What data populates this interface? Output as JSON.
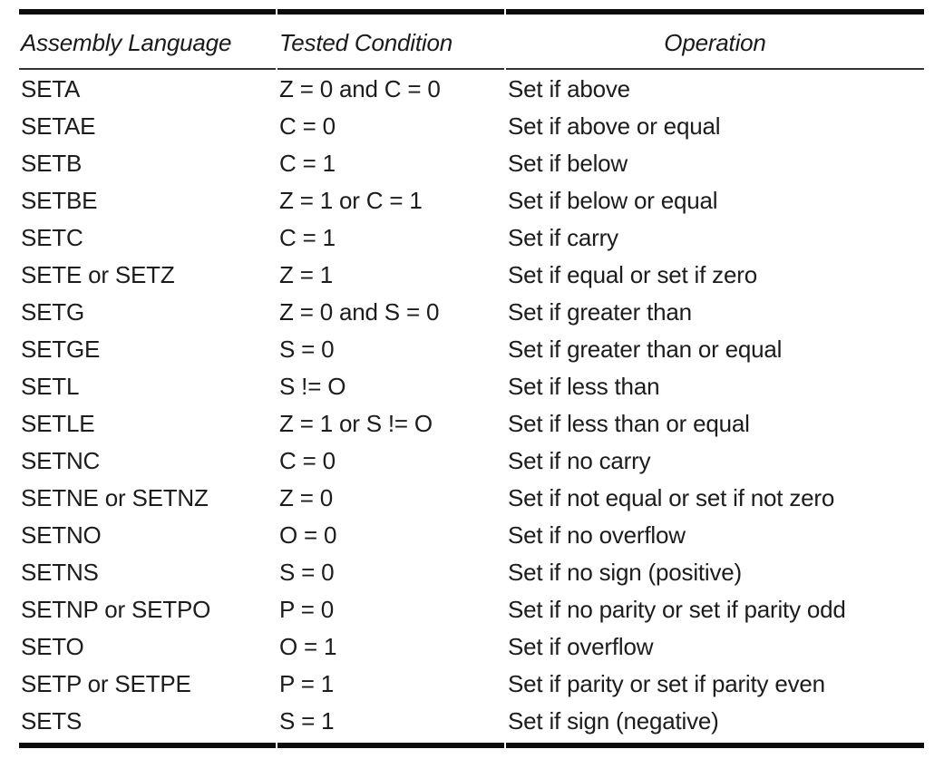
{
  "table": {
    "columns": [
      "Assembly Language",
      "Tested Condition",
      "Operation"
    ],
    "rows": [
      {
        "mnemonic": "SETA",
        "condition": "Z = 0 and C = 0",
        "operation": "Set if above"
      },
      {
        "mnemonic": "SETAE",
        "condition": "C = 0",
        "operation": "Set if above or equal"
      },
      {
        "mnemonic": "SETB",
        "condition": "C = 1",
        "operation": "Set if below"
      },
      {
        "mnemonic": "SETBE",
        "condition": "Z = 1 or C = 1",
        "operation": "Set if below or equal"
      },
      {
        "mnemonic": "SETC",
        "condition": "C = 1",
        "operation": "Set if carry"
      },
      {
        "mnemonic": "SETE or SETZ",
        "condition": "Z = 1",
        "operation": "Set if equal or set if zero"
      },
      {
        "mnemonic": "SETG",
        "condition": "Z = 0 and S = 0",
        "operation": "Set if greater than"
      },
      {
        "mnemonic": "SETGE",
        "condition": "S = 0",
        "operation": "Set if greater than or equal"
      },
      {
        "mnemonic": "SETL",
        "condition": "S != O",
        "operation": "Set if less than"
      },
      {
        "mnemonic": "SETLE",
        "condition": "Z = 1 or S != O",
        "operation": "Set if less than or equal"
      },
      {
        "mnemonic": "SETNC",
        "condition": "C = 0",
        "operation": "Set if no carry"
      },
      {
        "mnemonic": "SETNE or SETNZ",
        "condition": "Z = 0",
        "operation": "Set if not equal or set if not zero"
      },
      {
        "mnemonic": "SETNO",
        "condition": "O = 0",
        "operation": "Set if no overflow"
      },
      {
        "mnemonic": "SETNS",
        "condition": "S = 0",
        "operation": "Set if no sign (positive)"
      },
      {
        "mnemonic": "SETNP or SETPO",
        "condition": "P = 0",
        "operation": "Set if no parity or set if parity odd"
      },
      {
        "mnemonic": "SETO",
        "condition": "O = 1",
        "operation": "Set if overflow"
      },
      {
        "mnemonic": "SETP or SETPE",
        "condition": "P = 1",
        "operation": "Set if parity or set if parity even"
      },
      {
        "mnemonic": "SETS",
        "condition": "S = 1",
        "operation": "Set if sign (negative)"
      }
    ]
  },
  "colors": {
    "rule_thick": "#0c0c0c",
    "rule_thin": "#333333",
    "text": "#1c1c1c",
    "background": "#ffffff"
  }
}
